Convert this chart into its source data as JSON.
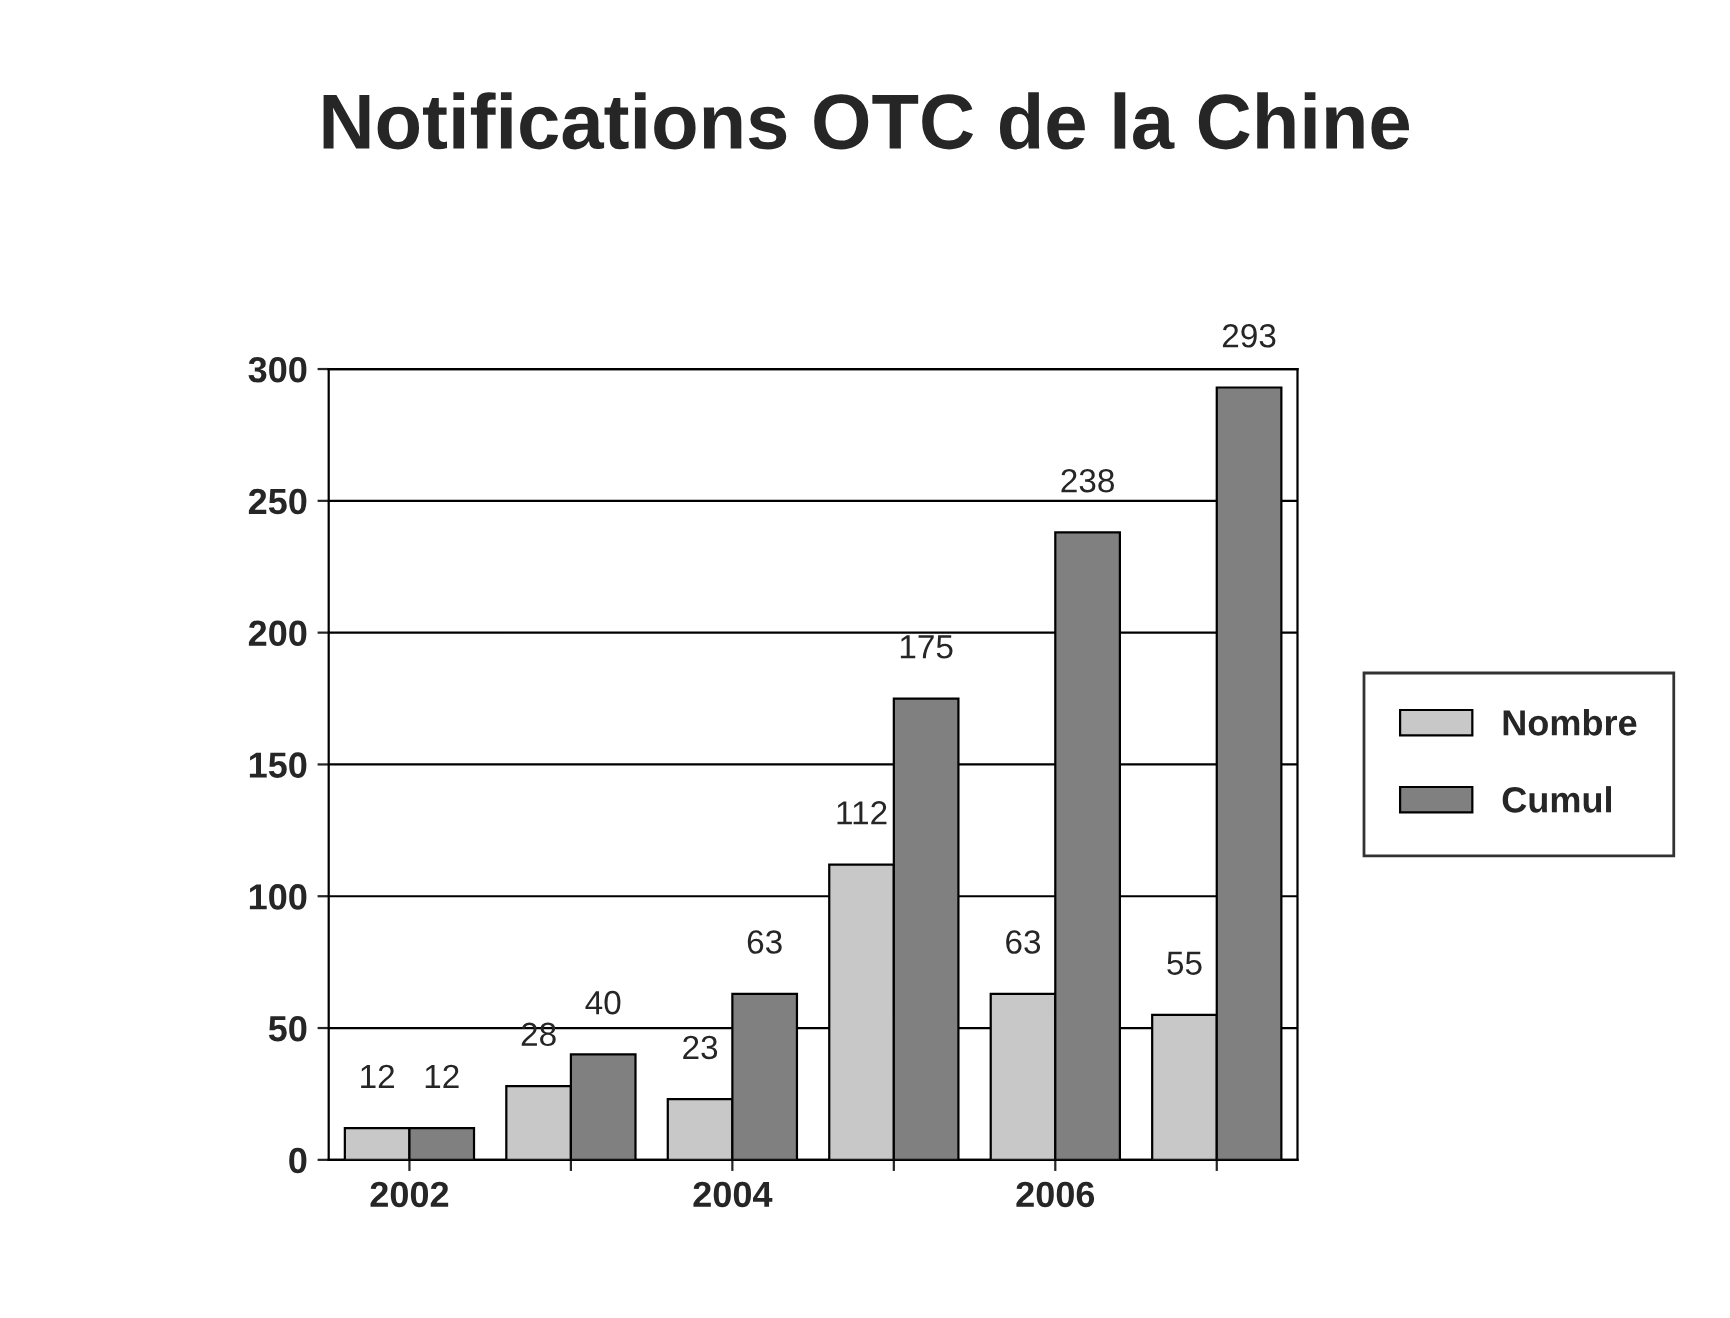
{
  "chart_data": {
    "type": "bar",
    "title": "Notifications OTC de la Chine",
    "categories": [
      "2002",
      null,
      "2004",
      null,
      "2006",
      null
    ],
    "series": [
      {
        "name": "Nombre",
        "color": "#c8c8c8",
        "values": [
          12,
          28,
          23,
          112,
          63,
          55
        ]
      },
      {
        "name": "Cumul",
        "color": "#808080",
        "values": [
          12,
          40,
          63,
          175,
          238,
          293
        ]
      }
    ],
    "ylim": [
      0,
      300
    ],
    "yticks": [
      0,
      50,
      100,
      150,
      200,
      250,
      300
    ],
    "grid": "y",
    "legend": "right",
    "data_labels": true
  }
}
